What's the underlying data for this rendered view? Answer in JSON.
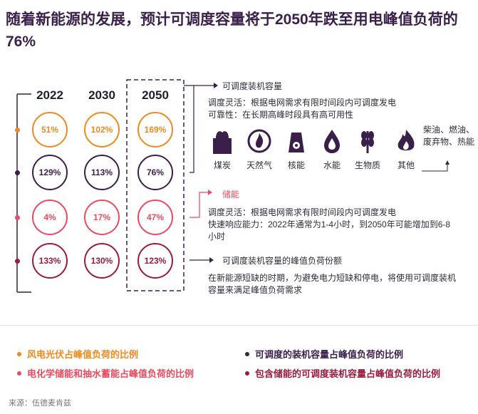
{
  "title": "随着新能源的发展，预计可调度容量将于2050年跌至用电峰值负荷的76%",
  "colors": {
    "orange": "#f08a1e",
    "purple": "#3a1f4a",
    "pink": "#ea4b5e",
    "crimson": "#9b1b3c"
  },
  "chart_data": {
    "type": "table",
    "years": [
      "2022",
      "2030",
      "2050"
    ],
    "rows": [
      {
        "metric": "风电光伏占峰值负荷的比例",
        "values": [
          "51%",
          "102%",
          "169%"
        ],
        "color": "#f08a1e"
      },
      {
        "metric": "可调度的装机容量占峰值负荷的比例",
        "values": [
          "129%",
          "113%",
          "76%"
        ],
        "color": "#3a1f4a"
      },
      {
        "metric": "电化学储能和抽水蓄能占峰值负荷的比例",
        "values": [
          "4%",
          "17%",
          "47%"
        ],
        "color": "#ea4b5e"
      },
      {
        "metric": "包含储能的可调度装机容量占峰值负荷的比例",
        "values": [
          "133%",
          "130%",
          "123%"
        ],
        "color": "#9b1b3c"
      }
    ]
  },
  "dispatchable": {
    "title": "可调度装机容量",
    "line1": "调度灵活：根据电网需求有限时间段内可调度发电",
    "line2": "可靠性：在长期高峰时段具有高可用性",
    "icons": [
      {
        "name": "factory-icon",
        "label": "煤炭"
      },
      {
        "name": "gas-flame-icon",
        "label": "天然气"
      },
      {
        "name": "nuclear-icon",
        "label": "核能"
      },
      {
        "name": "water-drop-icon",
        "label": "水能"
      },
      {
        "name": "wheat-icon",
        "label": "生物质"
      },
      {
        "name": "fire-icon",
        "label": "其他"
      }
    ],
    "other_note": "柴油、燃油、废弃物、热能"
  },
  "storage": {
    "title": "储能",
    "line1": "调度灵活：根据电网需求有限时间段内可调度发电",
    "line2": "快速响应能力：2022年通常为1-4小时，到2050年可能增加到6-8小时"
  },
  "peak_share": {
    "title": "可调度装机容量的峰值负荷份额",
    "body": "在新能源短缺的时期，为避免电力短缺和停电，将使用可调度装机容量来满足峰值负荷需求"
  },
  "legend": [
    {
      "label": "风电光伏占峰值负荷的比例",
      "color": "#f08a1e"
    },
    {
      "label": "可调度的装机容量占峰值负荷的比例",
      "color": "#3a1f4a"
    },
    {
      "label": "电化学储能和抽水蓄能占峰值负荷的比例",
      "color": "#ea4b5e"
    },
    {
      "label": "包含储能的可调度装机容量占峰值负荷的比例",
      "color": "#9b1b3c"
    }
  ],
  "source": "来源：伍德麦肯兹"
}
